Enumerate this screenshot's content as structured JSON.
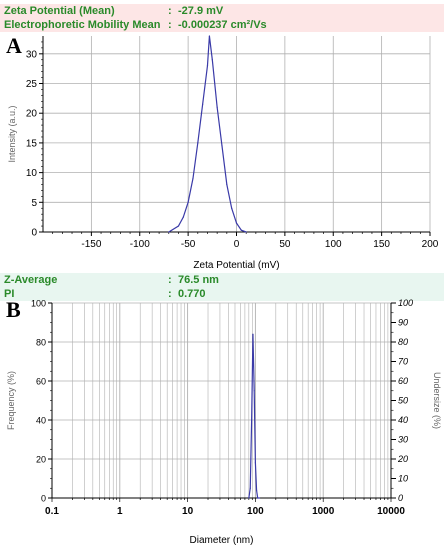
{
  "panels": [
    "A",
    "B"
  ],
  "zeta_summary": [
    {
      "label": "Zeta Potential (Mean)",
      "sep": ":",
      "value": "-27.9 mV"
    },
    {
      "label": "Electrophoretic Mobility Mean",
      "sep": ":",
      "value": "-0.000237 cm²/Vs"
    }
  ],
  "size_summary": [
    {
      "label": "Z-Average",
      "sep": ":",
      "value": "76.5 nm"
    },
    {
      "label": "PI",
      "sep": ":",
      "value": "0.770"
    }
  ],
  "colors": {
    "series": "#3a3aa8",
    "grid": "#b0b0b0",
    "zeta_bg": "#fde6e6",
    "size_bg": "#e8f6f0",
    "summary_text": "#2a8a2a"
  },
  "chart_data": [
    {
      "type": "line",
      "title": "",
      "xlabel": "Zeta Potential (mV)",
      "ylabel": "Intensity (a.u.)",
      "xlim": [
        -200,
        200
      ],
      "ylim": [
        0,
        33
      ],
      "xticks": [
        -150,
        -100,
        -50,
        0,
        50,
        100,
        150,
        200
      ],
      "xtick_labels": [
        "-150",
        "-100",
        "-50",
        "0",
        "50",
        "100",
        "150",
        "200"
      ],
      "yticks": [
        0,
        5,
        10,
        15,
        20,
        25,
        30
      ],
      "ytick_labels": [
        "0",
        "5",
        "10",
        "15",
        "20",
        "25",
        "30"
      ],
      "grid": true,
      "series": [
        {
          "x": [
            -70,
            -60,
            -55,
            -50,
            -45,
            -40,
            -35,
            -30,
            -28,
            -25,
            -20,
            -15,
            -10,
            -5,
            0,
            5,
            10
          ],
          "y": [
            0,
            1,
            2.5,
            5,
            9,
            15,
            21.5,
            28,
            33,
            29,
            21,
            14.5,
            8,
            4,
            1.5,
            0.3,
            0
          ]
        }
      ]
    },
    {
      "type": "line",
      "title": "",
      "xlabel": "Diameter (nm)",
      "ylabel": "Frequency (%)",
      "y2label": "Undersize (%)",
      "xscale": "log",
      "xlim": [
        0.1,
        10000
      ],
      "ylim": [
        0,
        100
      ],
      "y2lim": [
        0,
        100
      ],
      "xticks": [
        0.1,
        1,
        10,
        100,
        1000,
        10000
      ],
      "xtick_labels": [
        "0.1",
        "1",
        "10",
        "100",
        "1000",
        "10000"
      ],
      "yticks": [
        0,
        20,
        40,
        60,
        80,
        100
      ],
      "ytick_labels": [
        "0",
        "20",
        "40",
        "60",
        "80",
        "100"
      ],
      "y2ticks": [
        0,
        10,
        20,
        30,
        40,
        50,
        60,
        70,
        80,
        90,
        100
      ],
      "y2tick_labels": [
        "0",
        "10",
        "20",
        "30",
        "40",
        "50",
        "60",
        "70",
        "80",
        "90",
        "100"
      ],
      "grid": true,
      "series": [
        {
          "x": [
            80,
            84,
            88,
            92,
            96,
            100,
            104,
            108,
            115
          ],
          "y": [
            0,
            5,
            40,
            84,
            55,
            18,
            4,
            0,
            0
          ]
        }
      ]
    }
  ]
}
